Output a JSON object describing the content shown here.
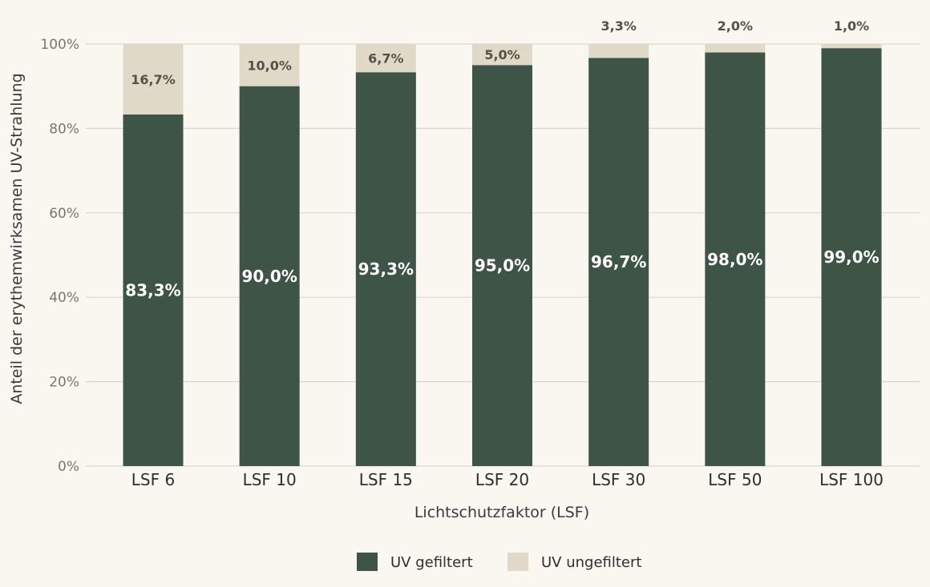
{
  "chart_data": {
    "type": "bar",
    "stacked": true,
    "xlabel": "Lichtschutzfaktor (LSF)",
    "ylabel": "Anteil der erythemwirksamen UV-Strahlung",
    "ylim": [
      0,
      100
    ],
    "y_ticks": [
      "0%",
      "20%",
      "40%",
      "60%",
      "80%",
      "100%"
    ],
    "grid": true,
    "legend_position": "bottom",
    "categories": [
      "LSF 6",
      "LSF 10",
      "LSF 15",
      "LSF 20",
      "LSF 30",
      "LSF 50",
      "LSF 100"
    ],
    "series": [
      {
        "name": "UV gefiltert",
        "color": "#3e5446",
        "values": [
          83.3,
          90.0,
          93.3,
          95.0,
          96.7,
          98.0,
          99.0
        ],
        "labels": [
          "83,3%",
          "90,0%",
          "93,3%",
          "95,0%",
          "96,7%",
          "98,0%",
          "99,0%"
        ]
      },
      {
        "name": "UV ungefiltert",
        "color": "#e1d9c8",
        "values": [
          16.7,
          10.0,
          6.7,
          5.0,
          3.3,
          2.0,
          1.0
        ],
        "labels": [
          "16,7%",
          "10,0%",
          "6,7%",
          "5,0%",
          "3,3%",
          "2,0%",
          "1,0%"
        ]
      }
    ],
    "colors": {
      "background": "#faf7f1",
      "grid": "#dcd8d0"
    }
  }
}
